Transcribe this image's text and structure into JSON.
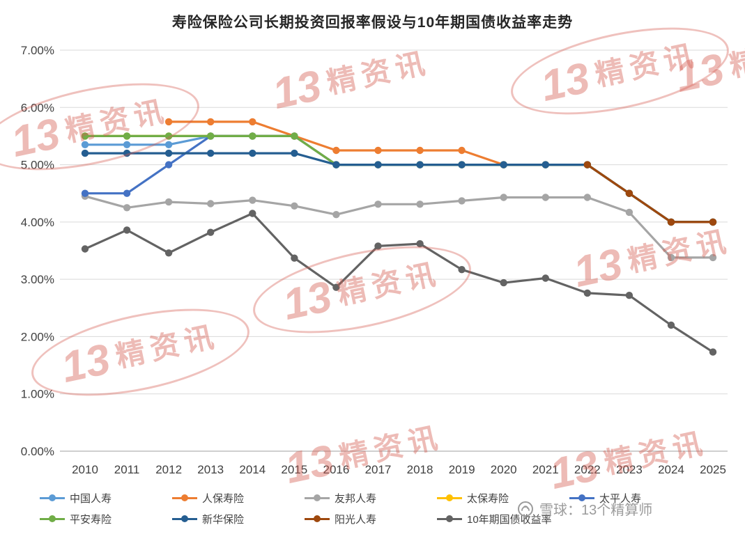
{
  "title": "寿险保险公司长期投资回报率假设与10年期国债收益率走势",
  "watermark": {
    "num": "13",
    "brand": "精资讯"
  },
  "footer": {
    "credit": "雪球：13个精算师"
  },
  "chart_data": {
    "type": "line",
    "title": "寿险保险公司长期投资回报率假设与10年期国债收益率走势",
    "x": [
      2010,
      2011,
      2012,
      2013,
      2014,
      2015,
      2016,
      2017,
      2018,
      2019,
      2020,
      2021,
      2022,
      2023,
      2024,
      2025
    ],
    "xlabel": "",
    "ylabel": "",
    "ylim": [
      0,
      7
    ],
    "ytick_step": 1,
    "ytick_labels": [
      "0.00%",
      "1.00%",
      "2.00%",
      "3.00%",
      "4.00%",
      "5.00%",
      "6.00%",
      "7.00%"
    ],
    "grid": true,
    "legend_position": "bottom",
    "series": [
      {
        "name": "中国人寿",
        "color": "#5B9BD5",
        "values": [
          5.35,
          5.35,
          5.35,
          5.5,
          5.5,
          5.5,
          5,
          5,
          5,
          5,
          5,
          5,
          5,
          4.5,
          4,
          4
        ]
      },
      {
        "name": "人保寿险",
        "color": "#ED7D31",
        "values": [
          null,
          null,
          5.75,
          5.75,
          5.75,
          5.5,
          5.25,
          5.25,
          5.25,
          5.25,
          5,
          5,
          5,
          4.5,
          4,
          4
        ]
      },
      {
        "name": "友邦人寿",
        "color": "#A5A5A5",
        "values": [
          4.45,
          4.25,
          4.35,
          4.32,
          4.38,
          4.28,
          4.13,
          4.31,
          4.31,
          4.37,
          4.43,
          4.43,
          4.43,
          4.17,
          3.38,
          3.38
        ]
      },
      {
        "name": "太保寿险",
        "color": "#FFC000",
        "values": [
          5.5,
          5.5,
          5.5,
          5.5,
          5.5,
          5.5,
          5,
          5,
          5,
          5,
          5,
          5,
          5,
          4.5,
          4,
          4
        ]
      },
      {
        "name": "太平人寿",
        "color": "#4472C4",
        "values": [
          4.5,
          4.5,
          5,
          5.5,
          5.5,
          5.5,
          5,
          5,
          5,
          5,
          5,
          5,
          5,
          4.5,
          4,
          4
        ]
      },
      {
        "name": "平安寿险",
        "color": "#70AD47",
        "values": [
          5.5,
          5.5,
          5.5,
          5.5,
          5.5,
          5.5,
          5,
          5,
          5,
          5,
          5,
          5,
          5,
          4.5,
          4,
          4
        ]
      },
      {
        "name": "新华保险",
        "color": "#255E91",
        "values": [
          5.2,
          5.2,
          5.2,
          5.2,
          5.2,
          5.2,
          5,
          5,
          5,
          5,
          5,
          5,
          5,
          4.5,
          4,
          4
        ]
      },
      {
        "name": "阳光人寿",
        "color": "#9E480E",
        "values": [
          null,
          null,
          null,
          null,
          null,
          null,
          null,
          null,
          null,
          null,
          null,
          null,
          5,
          4.5,
          4,
          4
        ]
      },
      {
        "name": "10年期国债收益率",
        "color": "#636363",
        "values": [
          3.53,
          3.86,
          3.46,
          3.82,
          4.15,
          3.37,
          2.86,
          3.58,
          3.62,
          3.17,
          2.94,
          3.02,
          2.76,
          2.72,
          2.2,
          1.73
        ]
      }
    ]
  }
}
